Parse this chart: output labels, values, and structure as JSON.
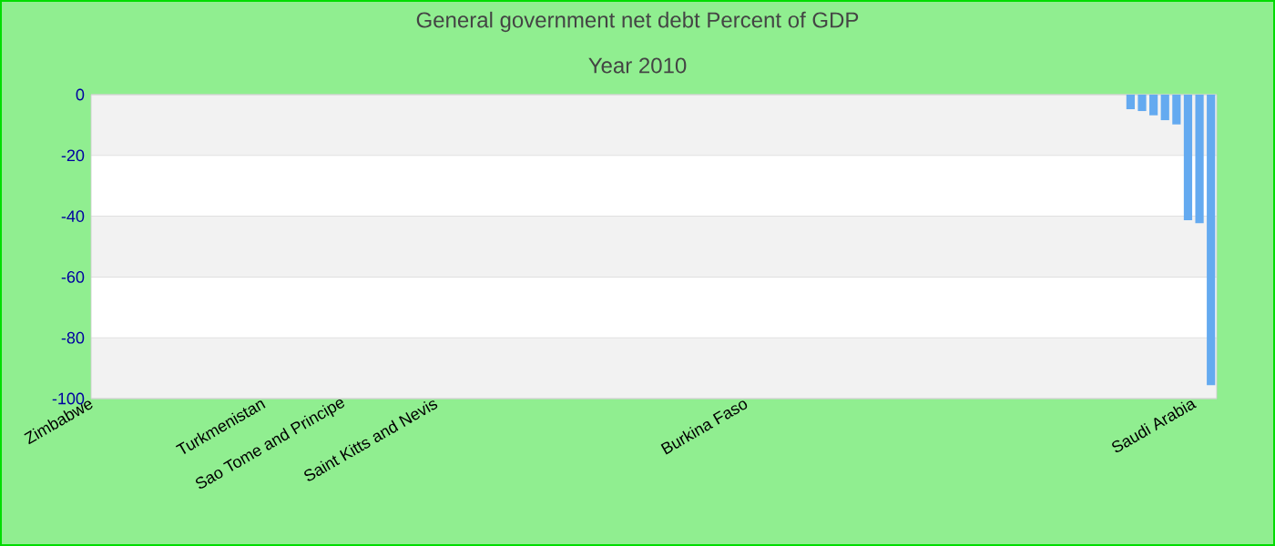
{
  "chart_data": {
    "type": "bar",
    "title": "General government net debt  Percent of GDP",
    "subtitle": "Year 2010",
    "categories": [
      "Zimbabwe",
      null,
      null,
      null,
      null,
      null,
      null,
      null,
      null,
      null,
      null,
      null,
      null,
      null,
      null,
      "Turkmenistan",
      null,
      null,
      null,
      null,
      null,
      null,
      "Sao Tome and Principe",
      null,
      null,
      null,
      null,
      null,
      null,
      null,
      "Saint Kitts and Nevis",
      null,
      null,
      null,
      null,
      null,
      null,
      null,
      null,
      null,
      null,
      null,
      null,
      null,
      null,
      null,
      null,
      null,
      null,
      null,
      null,
      null,
      null,
      null,
      null,
      null,
      null,
      "Burkina Faso",
      null,
      null,
      null,
      null,
      null,
      null,
      null,
      null,
      null,
      null,
      null,
      null,
      null,
      null,
      null,
      null,
      null,
      null,
      null,
      null,
      null,
      null,
      null,
      null,
      null,
      null,
      null,
      null,
      null,
      null,
      null,
      null,
      null,
      null,
      null,
      null,
      null,
      null,
      "Saudi Arabia",
      null
    ],
    "values": [
      0,
      0,
      0,
      0,
      0,
      0,
      0,
      0,
      0,
      0,
      0,
      0,
      0,
      0,
      0,
      0,
      0,
      0,
      0,
      0,
      0,
      0,
      0,
      0,
      0,
      0,
      0,
      0,
      0,
      0,
      0,
      0,
      0,
      0,
      0,
      0,
      0,
      0,
      0,
      0,
      0,
      0,
      0,
      0,
      0,
      0,
      0,
      0,
      0,
      0,
      0,
      0,
      0,
      0,
      0,
      0,
      0,
      0,
      0,
      0,
      0,
      0,
      0,
      0,
      0,
      0,
      0,
      0,
      0,
      0,
      0,
      0,
      0,
      0,
      0,
      0,
      0,
      0,
      0,
      0,
      0,
      0,
      0,
      0,
      0,
      0,
      0,
      0,
      0,
      0,
      -4.8,
      -5.4,
      -6.8,
      -8.4,
      -9.8,
      -41.3,
      -42.3,
      -95.6
    ],
    "color": "#64aaf0",
    "ylim": [
      -100,
      0
    ],
    "yticks": [
      -100,
      -80,
      -60,
      -40,
      -20,
      0
    ],
    "grid": "y"
  }
}
